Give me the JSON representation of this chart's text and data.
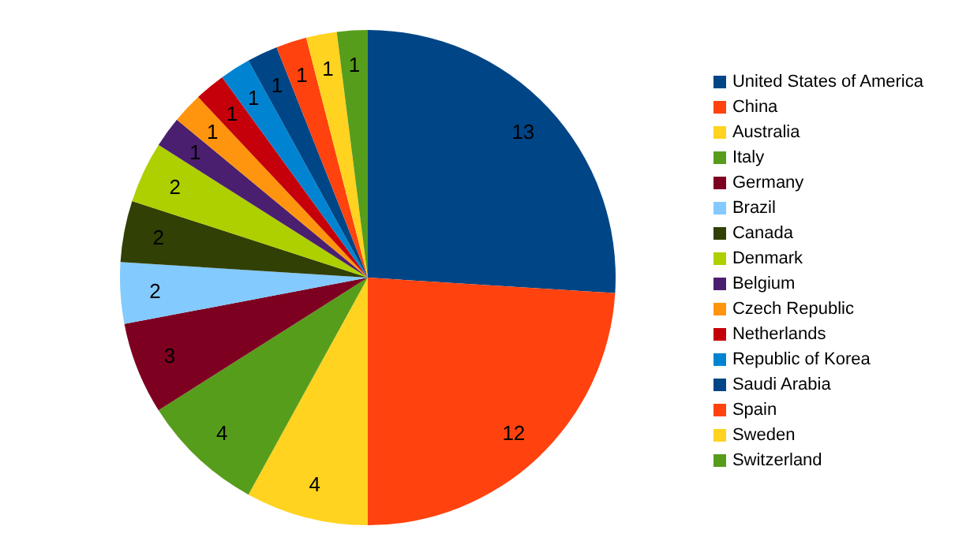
{
  "chart_data": {
    "type": "pie",
    "categories": [
      "United States of America",
      "China",
      "Australia",
      "Italy",
      "Germany",
      "Brazil",
      "Canada",
      "Denmark",
      "Belgium",
      "Czech Republic",
      "Netherlands",
      "Republic of Korea",
      "Saudi Arabia",
      "Spain",
      "Sweden",
      "Switzerland"
    ],
    "values": [
      13,
      12,
      4,
      4,
      3,
      2,
      2,
      2,
      1,
      1,
      1,
      1,
      1,
      1,
      1,
      1
    ],
    "colors": [
      "#004586",
      "#ff420e",
      "#ffd320",
      "#579d1c",
      "#7e0021",
      "#83caff",
      "#314004",
      "#aecf00",
      "#4b1f6f",
      "#ff950e",
      "#c5000b",
      "#0084d1",
      "#004586",
      "#ff420e",
      "#ffd320",
      "#579d1c"
    ],
    "data_labels": true,
    "legend": "right"
  }
}
